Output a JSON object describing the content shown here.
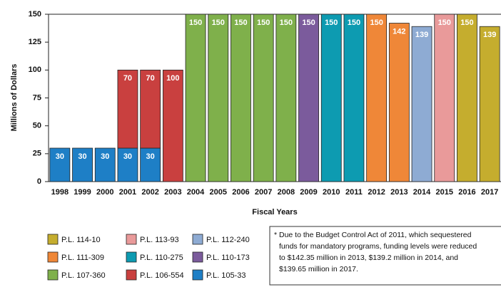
{
  "chart_data": {
    "type": "bar",
    "stacked": true,
    "y_label": "Millions of Dollars",
    "x_label": "Fiscal Years",
    "categories": [
      "1998",
      "1999",
      "2000",
      "2001",
      "2002",
      "2003",
      "2004",
      "2005",
      "2006",
      "2007",
      "2008",
      "2009",
      "2010",
      "2011",
      "2012",
      "2013",
      "2014",
      "2015",
      "2016",
      "2017"
    ],
    "series": [
      {
        "name": "P.L. 114-10",
        "color": "#c5ad2e",
        "values": [
          null,
          null,
          null,
          null,
          null,
          null,
          null,
          null,
          null,
          null,
          null,
          null,
          null,
          null,
          null,
          null,
          null,
          null,
          150,
          139
        ]
      },
      {
        "name": "P.L. 113-93",
        "color": "#e99a9a",
        "values": [
          null,
          null,
          null,
          null,
          null,
          null,
          null,
          null,
          null,
          null,
          null,
          null,
          null,
          null,
          null,
          null,
          null,
          150,
          null,
          null
        ]
      },
      {
        "name": "P.L. 112-240",
        "color": "#8eabd3",
        "values": [
          null,
          null,
          null,
          null,
          null,
          null,
          null,
          null,
          null,
          null,
          null,
          null,
          null,
          null,
          null,
          null,
          139,
          null,
          null,
          null
        ]
      },
      {
        "name": "P.L. 111-309",
        "color": "#ef8738",
        "values": [
          null,
          null,
          null,
          null,
          null,
          null,
          null,
          null,
          null,
          null,
          null,
          null,
          null,
          null,
          150,
          142,
          null,
          null,
          null,
          null
        ]
      },
      {
        "name": "P.L. 110-275",
        "color": "#0d9bb1",
        "values": [
          null,
          null,
          null,
          null,
          null,
          null,
          null,
          null,
          null,
          null,
          null,
          null,
          150,
          150,
          null,
          null,
          null,
          null,
          null,
          null
        ]
      },
      {
        "name": "P.L. 110-173",
        "color": "#7b5b9c",
        "values": [
          null,
          null,
          null,
          null,
          null,
          null,
          null,
          null,
          null,
          null,
          null,
          150,
          null,
          null,
          null,
          null,
          null,
          null,
          null,
          null
        ]
      },
      {
        "name": "P.L. 107-360",
        "color": "#7fb04b",
        "values": [
          null,
          null,
          null,
          null,
          null,
          null,
          150,
          150,
          150,
          150,
          150,
          null,
          null,
          null,
          null,
          null,
          null,
          null,
          null,
          null
        ]
      },
      {
        "name": "P.L. 106-554",
        "color": "#c9403f",
        "values": [
          null,
          null,
          null,
          70,
          70,
          100,
          null,
          null,
          null,
          null,
          null,
          null,
          null,
          null,
          null,
          null,
          null,
          null,
          null,
          null
        ]
      },
      {
        "name": "P.L. 105-33",
        "color": "#1e7fc6",
        "values": [
          30,
          30,
          30,
          30,
          30,
          null,
          null,
          null,
          null,
          null,
          null,
          null,
          null,
          null,
          null,
          null,
          null,
          null,
          null,
          null
        ]
      }
    ],
    "ylim": [
      0,
      150
    ],
    "yticks": [
      0,
      25,
      50,
      75,
      100,
      125,
      150
    ],
    "grid": false,
    "footnote": [
      "* Due to the Budget Control Act of 2011, which sequestered",
      "funds for mandatory programs, funding levels were reduced",
      "to $142.35 million in 2013, $139.2 million in 2014, and",
      "$139.65 million in 2017."
    ]
  }
}
